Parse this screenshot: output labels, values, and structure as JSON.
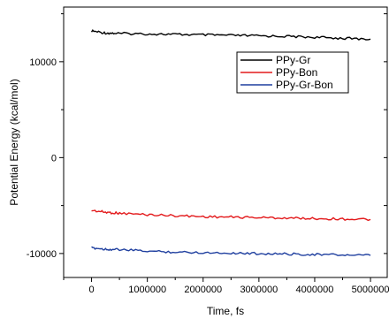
{
  "chart_data": {
    "type": "line",
    "title": "",
    "xlabel": "Time, fs",
    "ylabel": "Potential Energy (kcal/mol)",
    "xlim": [
      -500000,
      5300000
    ],
    "ylim": [
      -12500,
      15700
    ],
    "xticks": [
      0,
      1000000,
      2000000,
      3000000,
      4000000,
      5000000
    ],
    "xtick_labels": [
      "0",
      "1000000",
      "2000000",
      "3000000",
      "4000000",
      "5000000"
    ],
    "yticks": [
      -10000,
      0,
      10000
    ],
    "ytick_labels": [
      "-10000",
      "0",
      "10000"
    ],
    "grid": false,
    "legend_position": "upper-right",
    "x": [
      0,
      250000,
      500000,
      1000000,
      1500000,
      2000000,
      2500000,
      3000000,
      3500000,
      4000000,
      4500000,
      5000000
    ],
    "series": [
      {
        "name": "PPy-Gr",
        "color": "#000000",
        "values": [
          13200,
          13000,
          12950,
          12900,
          12850,
          12800,
          12750,
          12700,
          12650,
          12550,
          12450,
          12350
        ]
      },
      {
        "name": "PPy-Bon",
        "color": "#e31a1c",
        "values": [
          -5500,
          -5700,
          -5800,
          -5950,
          -6050,
          -6150,
          -6200,
          -6250,
          -6300,
          -6350,
          -6400,
          -6450
        ]
      },
      {
        "name": "PPy-Gr-Bon",
        "color": "#1f3f9f",
        "values": [
          -9400,
          -9550,
          -9600,
          -9750,
          -9850,
          -9900,
          -9950,
          -10000,
          -10050,
          -10100,
          -10150,
          -10200
        ]
      }
    ]
  }
}
